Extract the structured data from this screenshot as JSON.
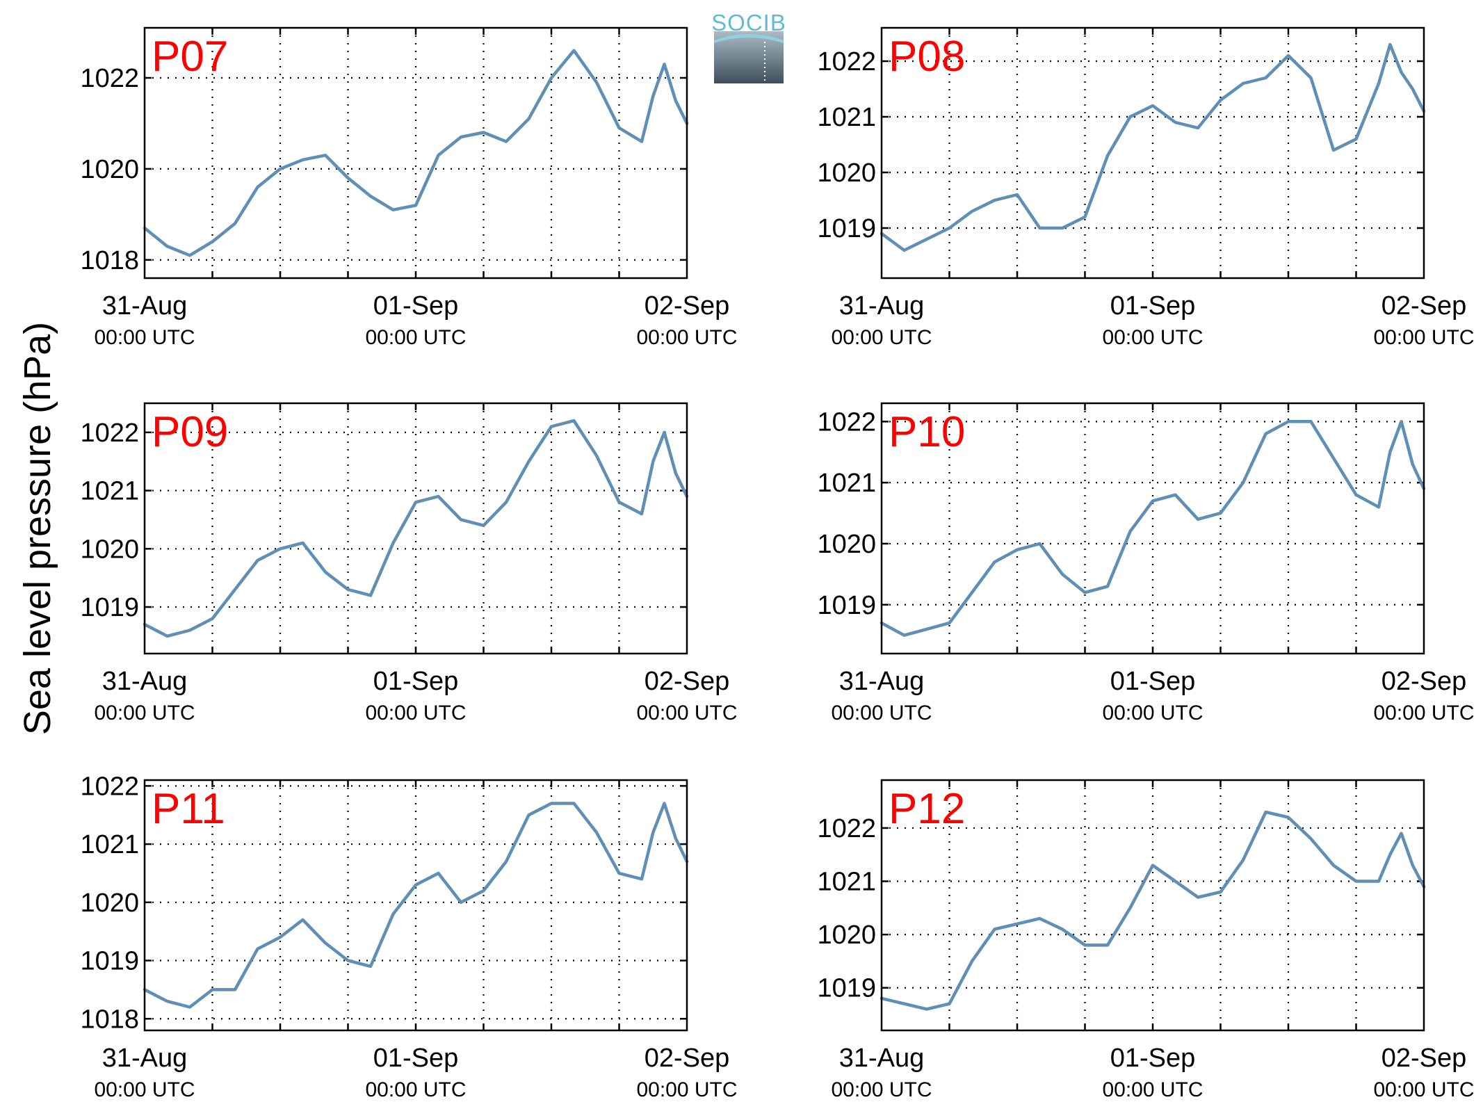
{
  "ylabel": "Sea level pressure (hPa)",
  "logo": {
    "text": "SOCIB"
  },
  "colors": {
    "series": "#5f8fb4",
    "panel_label": "#ff0000",
    "logo_accent": "#5fbcd3",
    "logo_dark": "#3e4f5b"
  },
  "chart_data": [
    {
      "type": "line",
      "panel": "P07",
      "xlim": [
        0,
        48
      ],
      "ylim": [
        1017.6,
        1023.1
      ],
      "yticks": [
        1018,
        1020,
        1022
      ],
      "xtick_labels": [
        {
          "x": 0,
          "date": "31-Aug",
          "time": "00:00 UTC"
        },
        {
          "x": 24,
          "date": "01-Sep",
          "time": "00:00 UTC"
        },
        {
          "x": 48,
          "date": "02-Sep",
          "time": "00:00 UTC"
        }
      ],
      "x": [
        0,
        2,
        4,
        6,
        8,
        10,
        12,
        14,
        16,
        18,
        20,
        22,
        24,
        26,
        28,
        30,
        32,
        34,
        36,
        38,
        40,
        42,
        44,
        45,
        46,
        47,
        48
      ],
      "y": [
        1018.7,
        1018.3,
        1018.1,
        1018.4,
        1018.8,
        1019.6,
        1020.0,
        1020.2,
        1020.3,
        1019.8,
        1019.4,
        1019.1,
        1019.2,
        1020.3,
        1020.7,
        1020.8,
        1020.6,
        1021.1,
        1022.0,
        1022.6,
        1021.9,
        1020.9,
        1020.6,
        1021.6,
        1022.3,
        1021.5,
        1021.0
      ]
    },
    {
      "type": "line",
      "panel": "P08",
      "xlim": [
        0,
        48
      ],
      "ylim": [
        1018.1,
        1022.6
      ],
      "yticks": [
        1019,
        1020,
        1021,
        1022
      ],
      "xtick_labels": [
        {
          "x": 0,
          "date": "31-Aug",
          "time": "00:00 UTC"
        },
        {
          "x": 24,
          "date": "01-Sep",
          "time": "00:00 UTC"
        },
        {
          "x": 48,
          "date": "02-Sep",
          "time": "00:00 UTC"
        }
      ],
      "x": [
        0,
        2,
        4,
        6,
        8,
        10,
        12,
        14,
        16,
        18,
        20,
        22,
        24,
        26,
        28,
        30,
        32,
        34,
        36,
        38,
        40,
        42,
        44,
        45,
        46,
        47,
        48
      ],
      "y": [
        1018.9,
        1018.6,
        1018.8,
        1019.0,
        1019.3,
        1019.5,
        1019.6,
        1019.0,
        1019.0,
        1019.2,
        1020.3,
        1021.0,
        1021.2,
        1020.9,
        1020.8,
        1021.3,
        1021.6,
        1021.7,
        1022.1,
        1021.7,
        1020.4,
        1020.6,
        1021.6,
        1022.3,
        1021.8,
        1021.5,
        1021.1
      ]
    },
    {
      "type": "line",
      "panel": "P09",
      "xlim": [
        0,
        48
      ],
      "ylim": [
        1018.2,
        1022.5
      ],
      "yticks": [
        1019,
        1020,
        1021,
        1022
      ],
      "xtick_labels": [
        {
          "x": 0,
          "date": "31-Aug",
          "time": "00:00 UTC"
        },
        {
          "x": 24,
          "date": "01-Sep",
          "time": "00:00 UTC"
        },
        {
          "x": 48,
          "date": "02-Sep",
          "time": "00:00 UTC"
        }
      ],
      "x": [
        0,
        2,
        4,
        6,
        8,
        10,
        12,
        14,
        16,
        18,
        20,
        22,
        24,
        26,
        28,
        30,
        32,
        34,
        36,
        38,
        40,
        42,
        44,
        45,
        46,
        47,
        48
      ],
      "y": [
        1018.7,
        1018.5,
        1018.6,
        1018.8,
        1019.3,
        1019.8,
        1020.0,
        1020.1,
        1019.6,
        1019.3,
        1019.2,
        1020.1,
        1020.8,
        1020.9,
        1020.5,
        1020.4,
        1020.8,
        1021.5,
        1022.1,
        1022.2,
        1021.6,
        1020.8,
        1020.6,
        1021.5,
        1022.0,
        1021.3,
        1020.9
      ]
    },
    {
      "type": "line",
      "panel": "P10",
      "xlim": [
        0,
        48
      ],
      "ylim": [
        1018.2,
        1022.3
      ],
      "yticks": [
        1019,
        1020,
        1021,
        1022
      ],
      "xtick_labels": [
        {
          "x": 0,
          "date": "31-Aug",
          "time": "00:00 UTC"
        },
        {
          "x": 24,
          "date": "01-Sep",
          "time": "00:00 UTC"
        },
        {
          "x": 48,
          "date": "02-Sep",
          "time": "00:00 UTC"
        }
      ],
      "x": [
        0,
        2,
        4,
        6,
        8,
        10,
        12,
        14,
        16,
        18,
        20,
        22,
        24,
        26,
        28,
        30,
        32,
        34,
        36,
        38,
        40,
        42,
        44,
        45,
        46,
        47,
        48
      ],
      "y": [
        1018.7,
        1018.5,
        1018.6,
        1018.7,
        1019.2,
        1019.7,
        1019.9,
        1020.0,
        1019.5,
        1019.2,
        1019.3,
        1020.2,
        1020.7,
        1020.8,
        1020.4,
        1020.5,
        1021.0,
        1021.8,
        1022.0,
        1022.0,
        1021.4,
        1020.8,
        1020.6,
        1021.5,
        1022.0,
        1021.3,
        1020.9
      ]
    },
    {
      "type": "line",
      "panel": "P11",
      "xlim": [
        0,
        48
      ],
      "ylim": [
        1017.8,
        1022.1
      ],
      "yticks": [
        1018,
        1019,
        1020,
        1021,
        1022
      ],
      "xtick_labels": [
        {
          "x": 0,
          "date": "31-Aug",
          "time": "00:00 UTC"
        },
        {
          "x": 24,
          "date": "01-Sep",
          "time": "00:00 UTC"
        },
        {
          "x": 48,
          "date": "02-Sep",
          "time": "00:00 UTC"
        }
      ],
      "x": [
        0,
        2,
        4,
        6,
        8,
        10,
        12,
        14,
        16,
        18,
        20,
        22,
        24,
        26,
        28,
        30,
        32,
        34,
        36,
        38,
        40,
        42,
        44,
        45,
        46,
        47,
        48
      ],
      "y": [
        1018.5,
        1018.3,
        1018.2,
        1018.5,
        1018.5,
        1019.2,
        1019.4,
        1019.7,
        1019.3,
        1019.0,
        1018.9,
        1019.8,
        1020.3,
        1020.5,
        1020.0,
        1020.2,
        1020.7,
        1021.5,
        1021.7,
        1021.7,
        1021.2,
        1020.5,
        1020.4,
        1021.2,
        1021.7,
        1021.1,
        1020.7
      ]
    },
    {
      "type": "line",
      "panel": "P12",
      "xlim": [
        0,
        48
      ],
      "ylim": [
        1018.2,
        1022.9
      ],
      "yticks": [
        1019,
        1020,
        1021,
        1022
      ],
      "xtick_labels": [
        {
          "x": 0,
          "date": "31-Aug",
          "time": "00:00 UTC"
        },
        {
          "x": 24,
          "date": "01-Sep",
          "time": "00:00 UTC"
        },
        {
          "x": 48,
          "date": "02-Sep",
          "time": "00:00 UTC"
        }
      ],
      "x": [
        0,
        2,
        4,
        6,
        8,
        10,
        12,
        14,
        16,
        18,
        20,
        22,
        24,
        26,
        28,
        30,
        32,
        34,
        36,
        38,
        40,
        42,
        44,
        45,
        46,
        47,
        48
      ],
      "y": [
        1018.8,
        1018.7,
        1018.6,
        1018.7,
        1019.5,
        1020.1,
        1020.2,
        1020.3,
        1020.1,
        1019.8,
        1019.8,
        1020.5,
        1021.3,
        1021.0,
        1020.7,
        1020.8,
        1021.4,
        1022.3,
        1022.2,
        1021.8,
        1021.3,
        1021.0,
        1021.0,
        1021.5,
        1021.9,
        1021.3,
        1020.9
      ]
    }
  ]
}
